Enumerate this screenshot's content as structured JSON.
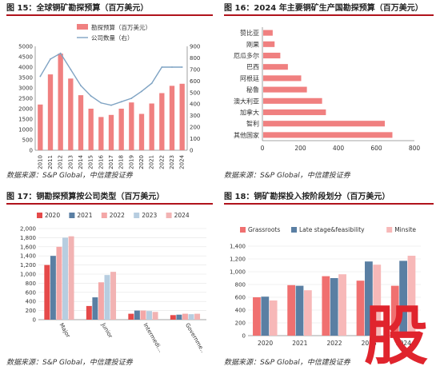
{
  "colors": {
    "bar": "#f08080",
    "line": "#7fa3c3",
    "bar_light": "#f4a3a3",
    "title_rule": "#b0121b",
    "series2020": "#e54a4a",
    "series2021": "#5a7fa3",
    "series2022": "#f4a7a7",
    "series2023": "#b7cde0",
    "series2024": "#f2b3b3",
    "stage_grassroots": "#f07070",
    "stage_late": "#5a7fa3",
    "stage_minsite": "#f7b8b8",
    "stamp": "#e0242d"
  },
  "source_note": "数据来源：S&P Global，中信建投证券",
  "stamp_glyph": "股",
  "charts": [
    {
      "id": "fig15",
      "title": "图 15：全球铜矿勘探预算（百万美元）",
      "type": "bar+line",
      "categories": [
        "2010",
        "2011",
        "2012",
        "2013",
        "2014",
        "2015",
        "2016",
        "2017",
        "2018",
        "2019",
        "2020",
        "2021",
        "2022",
        "2023",
        "2024"
      ],
      "bar_series": {
        "name": "勘探预算（百万美元）",
        "values": [
          2200,
          3650,
          4650,
          3450,
          2650,
          2000,
          1600,
          1700,
          2000,
          2300,
          1750,
          2250,
          2750,
          3100,
          3200
        ]
      },
      "line_series": {
        "name": "公司数量（右）",
        "values": [
          640,
          790,
          840,
          700,
          560,
          470,
          410,
          390,
          420,
          450,
          510,
          580,
          720,
          720,
          720
        ]
      },
      "y_left": {
        "min": 0,
        "max": 5000,
        "ticks": [
          "0",
          "500",
          "1000",
          "1500",
          "2000",
          "2500",
          "3000",
          "3500",
          "4000",
          "4500",
          "5000"
        ]
      },
      "y_right": {
        "min": 0,
        "max": 900,
        "ticks": [
          "0",
          "100",
          "200",
          "300",
          "400",
          "500",
          "600",
          "700",
          "800",
          "900"
        ]
      }
    },
    {
      "id": "fig16",
      "title": "图 16：2024 年主要铜矿生产国勘探预算（百万美元）",
      "type": "bar-horizontal",
      "categories": [
        "赞比亚",
        "刚果",
        "厄瓜多尔",
        "巴西",
        "阿根廷",
        "秘鲁",
        "澳大利亚",
        "加拿大",
        "智利",
        "其他国家"
      ],
      "values": [
        50,
        60,
        90,
        130,
        200,
        230,
        310,
        330,
        640,
        680
      ],
      "x_axis": {
        "min": 0,
        "max": 800,
        "ticks": [
          "0",
          "200",
          "400",
          "600",
          "800"
        ]
      }
    },
    {
      "id": "fig17",
      "title": "图 17：铜勘探预算按公司类型（百万美元）",
      "type": "bar-grouped",
      "categories": [
        "Major",
        "Junior",
        "Intermedi…",
        "Governme…"
      ],
      "series": [
        {
          "name": "2020",
          "values": [
            1200,
            300,
            130,
            100
          ]
        },
        {
          "name": "2021",
          "values": [
            1400,
            490,
            200,
            110
          ]
        },
        {
          "name": "2022",
          "values": [
            1600,
            820,
            200,
            130
          ]
        },
        {
          "name": "2023",
          "values": [
            1800,
            980,
            190,
            120
          ]
        },
        {
          "name": "2024",
          "values": [
            1830,
            1050,
            170,
            130
          ]
        }
      ],
      "y_axis": {
        "min": 0,
        "max": 2000,
        "ticks": [
          "0",
          "200",
          "400",
          "600",
          "800",
          "1,000",
          "1,200",
          "1,400",
          "1,600",
          "1,800",
          "2,000"
        ]
      }
    },
    {
      "id": "fig18",
      "title": "图 18：铜矿勘探投入按阶段划分（百万美元）",
      "type": "bar-grouped",
      "categories": [
        "2020",
        "2021",
        "2022",
        "2023",
        "2024"
      ],
      "series": [
        {
          "name": "Grassroots",
          "values": [
            600,
            790,
            930,
            860,
            780
          ]
        },
        {
          "name": "Late stage&feasibility",
          "values": [
            610,
            780,
            900,
            1160,
            1170
          ]
        },
        {
          "name": "Minsite",
          "values": [
            550,
            710,
            960,
            1110,
            1250
          ]
        }
      ],
      "y_axis": {
        "min": 0,
        "max": 1400,
        "ticks": [
          "0",
          "200",
          "400",
          "600",
          "800",
          "1,000",
          "1,200",
          "1,400"
        ]
      }
    }
  ]
}
